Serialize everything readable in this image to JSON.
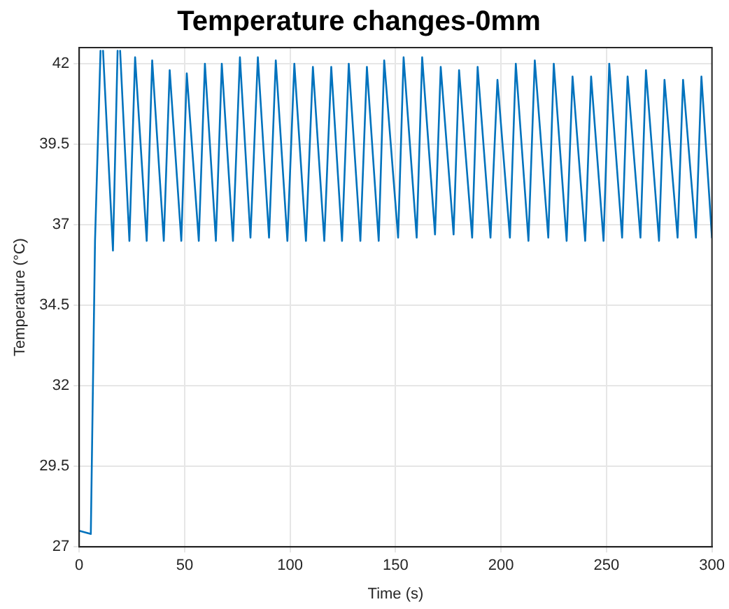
{
  "chart_data": {
    "type": "line",
    "title": "Temperature changes-0mm",
    "xlabel": "Time (s)",
    "ylabel": "Temperature (°C)",
    "x": [
      0,
      5.5,
      7.5,
      10.1,
      10.7,
      11.3,
      16.0,
      18.2,
      18.8,
      19.4,
      23.8,
      26.5,
      32.0,
      34.6,
      40.1,
      42.9,
      48.4,
      51.0,
      56.7,
      59.6,
      64.8,
      67.6,
      72.9,
      76.2,
      81.2,
      84.7,
      90.0,
      93.2,
      98.7,
      102.0,
      107.5,
      110.8,
      116.2,
      119.5,
      124.6,
      127.8,
      133.3,
      136.4,
      142.0,
      144.6,
      151.2,
      153.8,
      160.0,
      162.6,
      168.7,
      171.4,
      177.5,
      180.1,
      186.3,
      188.9,
      195.0,
      198.3,
      204.2,
      207.0,
      213.0,
      216.0,
      222.4,
      225.0,
      231.1,
      233.9,
      239.9,
      242.7,
      248.6,
      251.3,
      257.4,
      260.0,
      266.1,
      268.7,
      274.9,
      277.5,
      283.7,
      286.3,
      292.4,
      295.0,
      300
    ],
    "series": [
      {
        "color": "#0072bd",
        "values": [
          27.5,
          27.4,
          36.5,
          42.4,
          null,
          42.4,
          36.2,
          42.4,
          null,
          42.4,
          36.5,
          42.2,
          36.5,
          42.1,
          36.5,
          41.8,
          36.5,
          41.7,
          36.5,
          42.0,
          36.5,
          42.0,
          36.5,
          42.2,
          36.6,
          42.2,
          36.6,
          42.1,
          36.5,
          42.0,
          36.5,
          41.9,
          36.5,
          41.9,
          36.5,
          42.0,
          36.5,
          41.9,
          36.5,
          42.1,
          36.6,
          42.2,
          36.6,
          42.2,
          36.7,
          41.9,
          36.7,
          41.8,
          36.6,
          41.9,
          36.6,
          41.5,
          36.6,
          42.0,
          36.5,
          42.1,
          36.6,
          42.0,
          36.5,
          41.6,
          36.5,
          41.6,
          36.5,
          42.0,
          36.6,
          41.6,
          36.6,
          41.8,
          36.5,
          41.5,
          36.6,
          41.5,
          36.6,
          41.6,
          36.6
        ]
      }
    ],
    "xlim": [
      0,
      300
    ],
    "xticks": [
      0,
      50,
      100,
      150,
      200,
      250,
      300
    ],
    "ylim": [
      27,
      42.5
    ],
    "yticks": [
      27,
      29.5,
      32,
      34.5,
      37,
      39.5,
      42
    ],
    "grid": true,
    "legend": false,
    "marker": "none",
    "line_style": "solid"
  }
}
